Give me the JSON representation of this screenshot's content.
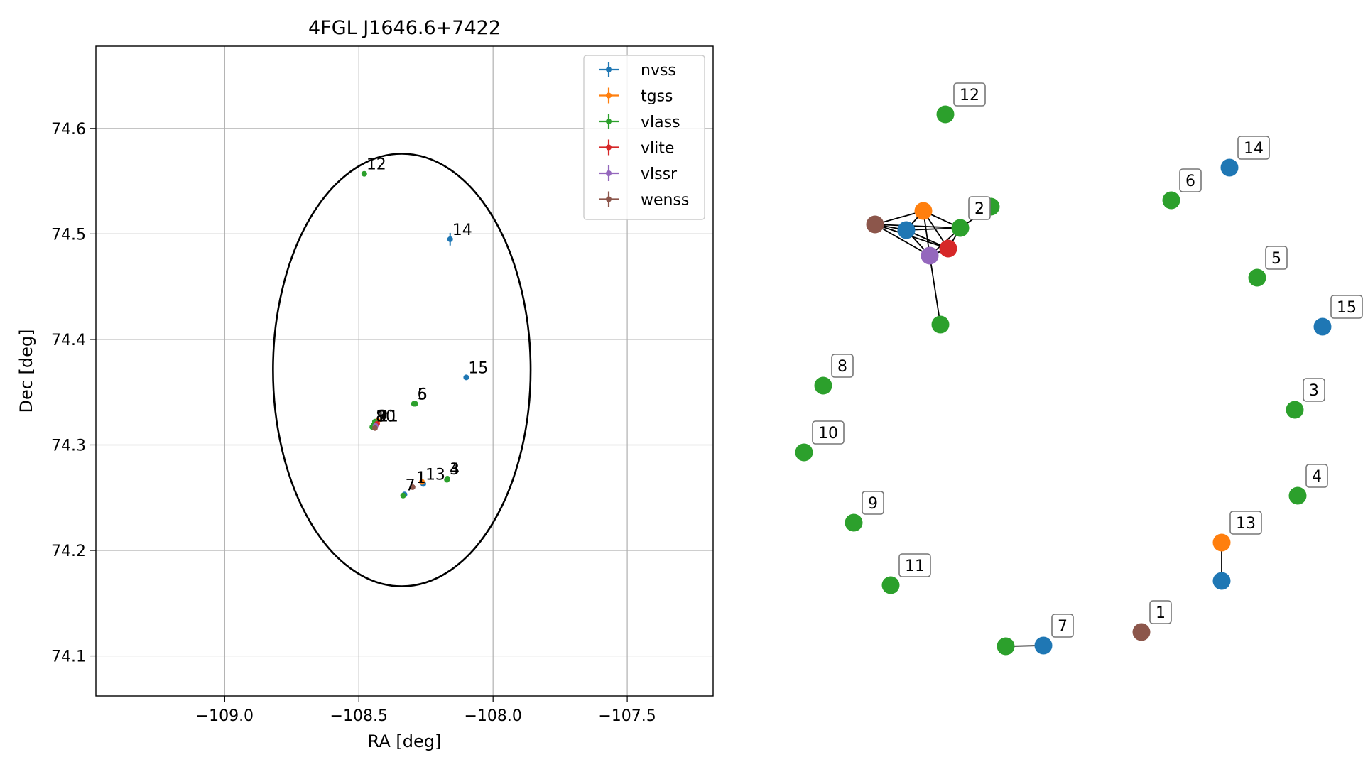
{
  "chart_data": [
    {
      "type": "scatter",
      "title": "4FGL J1646.6+7422",
      "xlabel": "RA [deg]",
      "ylabel": "Dec [deg]",
      "xlim": [
        -109.48,
        -107.18
      ],
      "ylim": [
        74.062,
        74.678
      ],
      "x_ticks": [
        -109.0,
        -108.5,
        -108.0,
        -107.5
      ],
      "x_tick_labels": [
        "−109.0",
        "−108.5",
        "−108.0",
        "−107.5"
      ],
      "y_ticks": [
        74.1,
        74.2,
        74.3,
        74.4,
        74.5,
        74.6
      ],
      "y_tick_labels": [
        "74.1",
        "74.2",
        "74.3",
        "74.4",
        "74.5",
        "74.6"
      ],
      "grid": true,
      "legend_position": "top-right",
      "series": [
        {
          "name": "nvss",
          "color": "#1f77b4",
          "points": [
            {
              "label": "14",
              "x": -108.16,
              "y": 74.495,
              "yerr": 0.006
            },
            {
              "label": "15",
              "x": -108.1,
              "y": 74.364
            },
            {
              "label": "13",
              "x": -108.26,
              "y": 74.263
            },
            {
              "label": "2",
              "x": -108.435,
              "y": 74.321
            },
            {
              "label": "7",
              "x": -108.33,
              "y": 74.253
            }
          ]
        },
        {
          "name": "tgss",
          "color": "#ff7f0e",
          "points": [
            {
              "label": "13",
              "x": -108.265,
              "y": 74.265
            },
            {
              "label": "2",
              "x": -108.43,
              "y": 74.323
            }
          ]
        },
        {
          "name": "vlass",
          "color": "#2ca02c",
          "points": [
            {
              "label": "12",
              "x": -108.48,
              "y": 74.557
            },
            {
              "label": "6",
              "x": -108.29,
              "y": 74.339
            },
            {
              "label": "5",
              "x": -108.295,
              "y": 74.339
            },
            {
              "label": "3",
              "x": -108.17,
              "y": 74.268
            },
            {
              "label": "4",
              "x": -108.172,
              "y": 74.267
            },
            {
              "label": "7",
              "x": -108.335,
              "y": 74.252
            },
            {
              "label": "8",
              "x": -108.44,
              "y": 74.318
            },
            {
              "label": "9",
              "x": -108.445,
              "y": 74.319
            },
            {
              "label": "10",
              "x": -108.45,
              "y": 74.317
            },
            {
              "label": "11",
              "x": -108.435,
              "y": 74.32
            },
            {
              "label": "2",
              "x": -108.44,
              "y": 74.322
            }
          ]
        },
        {
          "name": "vlite",
          "color": "#d62728",
          "points": [
            {
              "label": "2",
              "x": -108.432,
              "y": 74.32
            }
          ]
        },
        {
          "name": "vlssr",
          "color": "#9467bd",
          "points": [
            {
              "label": "2",
              "x": -108.438,
              "y": 74.318
            }
          ]
        },
        {
          "name": "wenss",
          "color": "#8c564b",
          "points": [
            {
              "label": "1",
              "x": -108.3,
              "y": 74.26
            },
            {
              "label": "2",
              "x": -108.44,
              "y": 74.316
            }
          ]
        }
      ],
      "annotations": [
        {
          "text": "12",
          "x": -108.48,
          "y": 74.557
        },
        {
          "text": "14",
          "x": -108.16,
          "y": 74.495
        },
        {
          "text": "15",
          "x": -108.1,
          "y": 74.364
        },
        {
          "text": "6",
          "x": -108.29,
          "y": 74.339
        },
        {
          "text": "5",
          "x": -108.29,
          "y": 74.339
        },
        {
          "text": "8",
          "x": -108.445,
          "y": 74.318
        },
        {
          "text": "9",
          "x": -108.44,
          "y": 74.318
        },
        {
          "text": "10",
          "x": -108.445,
          "y": 74.318
        },
        {
          "text": "11",
          "x": -108.435,
          "y": 74.318
        },
        {
          "text": "2",
          "x": -108.435,
          "y": 74.318
        },
        {
          "text": "7",
          "x": -108.335,
          "y": 74.253
        },
        {
          "text": "1",
          "x": -108.295,
          "y": 74.26
        },
        {
          "text": "13",
          "x": -108.26,
          "y": 74.263
        },
        {
          "text": "4",
          "x": -108.17,
          "y": 74.268
        },
        {
          "text": "3",
          "x": -108.17,
          "y": 74.268
        }
      ],
      "ellipse": {
        "center_x": -108.34,
        "center_y": 74.371,
        "semi_axis_x": 0.48,
        "semi_axis_y": 0.205
      }
    },
    {
      "type": "network",
      "nodes": [
        {
          "id": "a",
          "series": "wenss",
          "color": "#8c564b"
        },
        {
          "id": "b",
          "series": "nvss",
          "color": "#1f77b4"
        },
        {
          "id": "c",
          "series": "tgss",
          "color": "#ff7f0e"
        },
        {
          "id": "d",
          "series": "vlass",
          "color": "#2ca02c",
          "label": "2"
        },
        {
          "id": "e",
          "series": "vlass",
          "color": "#2ca02c"
        },
        {
          "id": "f",
          "series": "vlite",
          "color": "#d62728"
        },
        {
          "id": "g",
          "series": "vlssr",
          "color": "#9467bd"
        },
        {
          "id": "h",
          "series": "vlass",
          "color": "#2ca02c"
        },
        {
          "id": "n12",
          "series": "vlass",
          "color": "#2ca02c",
          "label": "12"
        },
        {
          "id": "n14",
          "series": "nvss",
          "color": "#1f77b4",
          "label": "14"
        },
        {
          "id": "n6",
          "series": "vlass",
          "color": "#2ca02c",
          "label": "6"
        },
        {
          "id": "n5",
          "series": "vlass",
          "color": "#2ca02c",
          "label": "5"
        },
        {
          "id": "n15",
          "series": "nvss",
          "color": "#1f77b4",
          "label": "15"
        },
        {
          "id": "n8",
          "series": "vlass",
          "color": "#2ca02c",
          "label": "8"
        },
        {
          "id": "n3",
          "series": "vlass",
          "color": "#2ca02c",
          "label": "3"
        },
        {
          "id": "n10",
          "series": "vlass",
          "color": "#2ca02c",
          "label": "10"
        },
        {
          "id": "n4",
          "series": "vlass",
          "color": "#2ca02c",
          "label": "4"
        },
        {
          "id": "n9",
          "series": "vlass",
          "color": "#2ca02c",
          "label": "9"
        },
        {
          "id": "n13t",
          "series": "tgss",
          "color": "#ff7f0e",
          "label": "13"
        },
        {
          "id": "n13n",
          "series": "nvss",
          "color": "#1f77b4"
        },
        {
          "id": "n11",
          "series": "vlass",
          "color": "#2ca02c",
          "label": "11"
        },
        {
          "id": "n1",
          "series": "wenss",
          "color": "#8c564b",
          "label": "1"
        },
        {
          "id": "n7g",
          "series": "vlass",
          "color": "#2ca02c"
        },
        {
          "id": "n7b",
          "series": "nvss",
          "color": "#1f77b4",
          "label": "7"
        }
      ],
      "edges": [
        [
          "a",
          "b"
        ],
        [
          "a",
          "c"
        ],
        [
          "a",
          "d"
        ],
        [
          "a",
          "f"
        ],
        [
          "a",
          "g"
        ],
        [
          "b",
          "c"
        ],
        [
          "b",
          "d"
        ],
        [
          "b",
          "f"
        ],
        [
          "b",
          "g"
        ],
        [
          "c",
          "d"
        ],
        [
          "c",
          "f"
        ],
        [
          "c",
          "g"
        ],
        [
          "d",
          "f"
        ],
        [
          "d",
          "g"
        ],
        [
          "d",
          "e"
        ],
        [
          "f",
          "g"
        ],
        [
          "g",
          "h"
        ],
        [
          "n13t",
          "n13n"
        ],
        [
          "n7g",
          "n7b"
        ]
      ]
    }
  ]
}
